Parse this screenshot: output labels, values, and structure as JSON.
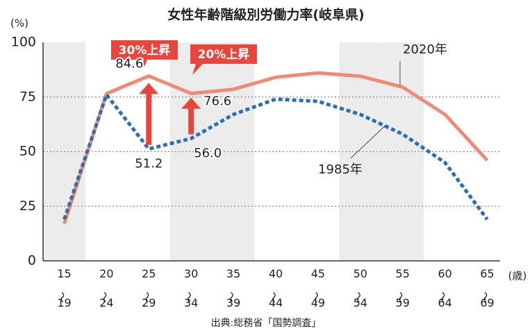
{
  "chart_data": {
    "type": "line",
    "title": "女性年齢階級別労働力率(岐阜県)",
    "y_unit": "(%)",
    "x_unit": "(歳)",
    "source": "出典:総務省「国勢調査」",
    "categories": [
      "15〜19",
      "20〜24",
      "25〜29",
      "30〜34",
      "35〜39",
      "40〜44",
      "45〜49",
      "50〜54",
      "55〜59",
      "60〜64",
      "65〜69"
    ],
    "series": [
      {
        "name": "2020年",
        "color": "#f08a72",
        "dashed": false,
        "values": [
          17,
          76.5,
          84.6,
          76.6,
          78.5,
          84,
          86,
          84.5,
          79.5,
          67,
          46
        ],
        "value_labels": [
          null,
          null,
          "84.6",
          "76.6",
          null,
          null,
          null,
          null,
          null,
          null,
          null
        ]
      },
      {
        "name": "1985年",
        "color": "#2f6db5",
        "dashed": true,
        "values": [
          19,
          76,
          51.2,
          56,
          67,
          74,
          73,
          67,
          58,
          45,
          19
        ],
        "value_labels": [
          null,
          null,
          "51.2",
          "56.0",
          null,
          null,
          null,
          null,
          null,
          null,
          null
        ]
      }
    ],
    "annotations": [
      "30%上昇",
      "20%上昇"
    ],
    "ylim": [
      0,
      100
    ],
    "yticks": [
      0,
      25,
      50,
      75,
      100
    ],
    "grid": true
  }
}
